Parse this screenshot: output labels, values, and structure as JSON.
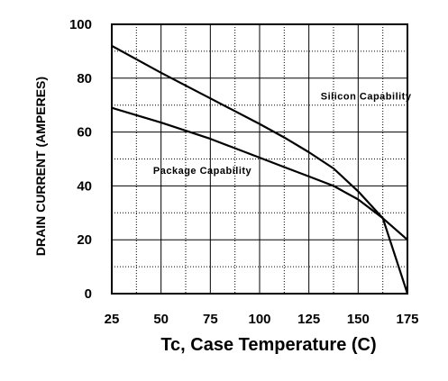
{
  "chart_data": {
    "type": "line",
    "xlabel": "Tc, Case Temperature (C)",
    "ylabel": "DRAIN CURRENT (AMPERES)",
    "xlim": [
      25,
      175
    ],
    "ylim": [
      0,
      100
    ],
    "x_ticks": [
      25,
      50,
      75,
      100,
      125,
      150,
      175
    ],
    "y_ticks": [
      0,
      20,
      40,
      60,
      80,
      100
    ],
    "grid": true,
    "series": [
      {
        "name": "Silicon Capability",
        "x": [
          25,
          50,
          75,
          100,
          112.5,
          125,
          137.5,
          150,
          162.5,
          175
        ],
        "y": [
          92,
          82,
          72.5,
          63,
          58,
          52.5,
          46.5,
          38,
          28,
          0
        ]
      },
      {
        "name": "Package Capability",
        "x": [
          25,
          50,
          75,
          100,
          112.5,
          125,
          137.5,
          150,
          162.5,
          175
        ],
        "y": [
          69,
          63.5,
          57.5,
          50.5,
          47,
          43.5,
          40,
          35,
          28,
          20
        ]
      }
    ],
    "annotations": [
      {
        "text": "Silicon Capability",
        "x": 131,
        "y": 72
      },
      {
        "text": "Package Capability",
        "x": 46,
        "y": 44.5
      }
    ]
  }
}
